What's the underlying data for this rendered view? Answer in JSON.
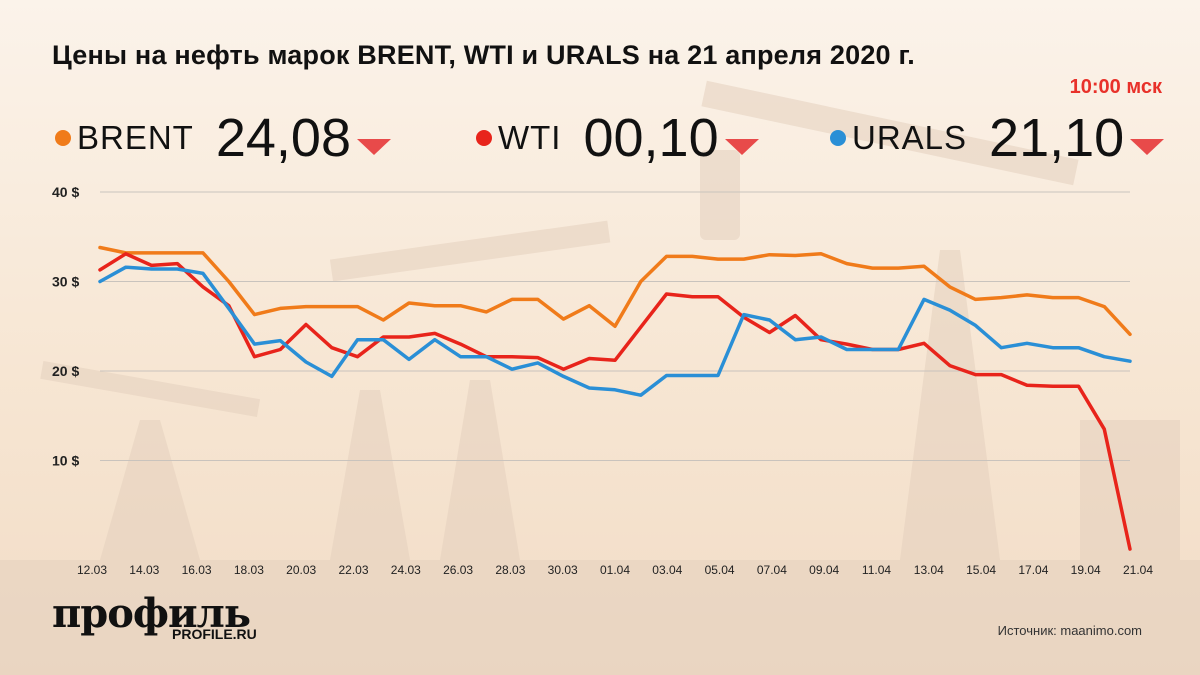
{
  "title": "Цены на нефть марок BRENT, WTI и URALS на 21 апреля 2020 г.",
  "time": "10:00 мск",
  "quotes": [
    {
      "name": "BRENT",
      "value": "24,08",
      "color": "#f07b1a",
      "trend": "down"
    },
    {
      "name": "WTI",
      "value": "00,10",
      "color": "#e8241b",
      "trend": "down"
    },
    {
      "name": "URALS",
      "value": "21,10",
      "color": "#2a8fd6",
      "trend": "down"
    }
  ],
  "colors": {
    "down_triangle": "#e84a4a",
    "grid": "#c9c3bd",
    "axis_text": "#222"
  },
  "brand": {
    "logo": "профиль",
    "site": "PROFILE.RU"
  },
  "source": "Источник: maanimo.com",
  "chart_data": {
    "type": "line",
    "x_tick_labels": [
      "12.03",
      "14.03",
      "16.03",
      "18.03",
      "20.03",
      "22.03",
      "24.03",
      "26.03",
      "28.03",
      "30.03",
      "01.04",
      "03.04",
      "05.04",
      "07.04",
      "09.04",
      "11.04",
      "13.04",
      "15.04",
      "17.04",
      "19.04",
      "21.04"
    ],
    "y_ticks": [
      {
        "value": 40,
        "label": "40 $"
      },
      {
        "value": 30,
        "label": "30 $"
      },
      {
        "value": 20,
        "label": "20 $"
      },
      {
        "value": 10,
        "label": "10 $"
      }
    ],
    "ylim": [
      0,
      40
    ],
    "grid": true,
    "series": [
      {
        "name": "BRENT",
        "color": "#f07b1a",
        "values": [
          33.8,
          33.2,
          33.2,
          33.2,
          33.2,
          30.0,
          26.3,
          27.0,
          27.2,
          27.2,
          27.2,
          25.7,
          27.6,
          27.3,
          27.3,
          26.6,
          28.0,
          28.0,
          25.8,
          27.3,
          25.0,
          30.0,
          32.8,
          32.8,
          32.5,
          32.5,
          33.0,
          32.9,
          33.1,
          32.0,
          31.5,
          31.5,
          31.7,
          29.4,
          28.0,
          28.2,
          28.5,
          28.2,
          28.2,
          27.2,
          24.1
        ]
      },
      {
        "name": "WTI",
        "color": "#e8241b",
        "values": [
          31.3,
          33.1,
          31.8,
          32.0,
          29.4,
          27.3,
          21.6,
          22.4,
          25.2,
          22.6,
          21.6,
          23.8,
          23.8,
          24.2,
          23.0,
          21.6,
          21.6,
          21.5,
          20.2,
          21.4,
          21.2,
          24.9,
          28.6,
          28.3,
          28.3,
          26.0,
          24.3,
          26.2,
          23.5,
          23.0,
          22.4,
          22.4,
          23.1,
          20.6,
          19.6,
          19.6,
          18.4,
          18.3,
          18.3,
          13.5,
          0.1
        ]
      },
      {
        "name": "URALS",
        "color": "#2a8fd6",
        "values": [
          30.0,
          31.6,
          31.4,
          31.4,
          30.9,
          27.0,
          23.0,
          23.4,
          21.0,
          19.4,
          23.5,
          23.5,
          21.3,
          23.5,
          21.6,
          21.6,
          20.2,
          20.9,
          19.4,
          18.1,
          17.9,
          17.3,
          19.5,
          19.5,
          19.5,
          26.3,
          25.7,
          23.5,
          23.8,
          22.4,
          22.4,
          22.4,
          28.0,
          26.8,
          25.1,
          22.6,
          23.1,
          22.6,
          22.6,
          21.6,
          21.1
        ]
      }
    ]
  }
}
